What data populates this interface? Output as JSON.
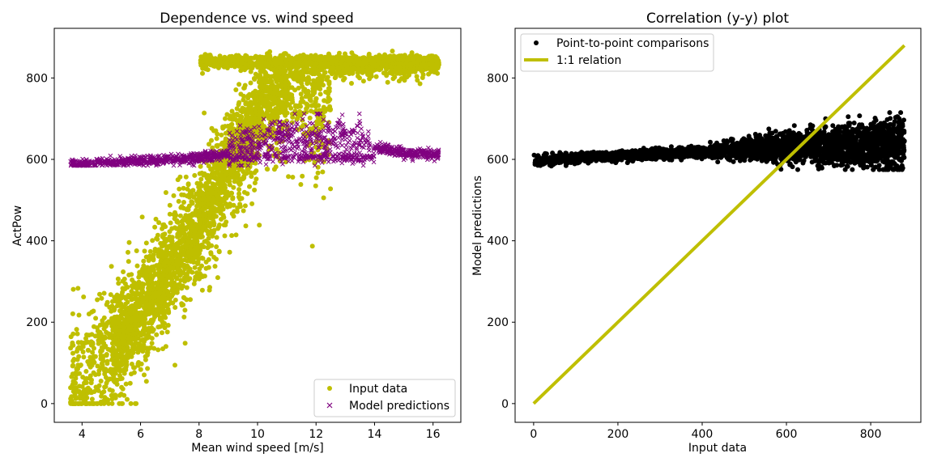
{
  "chart_data": [
    {
      "type": "scatter",
      "title": "Dependence vs. wind speed",
      "xlabel": "Mean wind speed [m/s]",
      "ylabel": "ActPow",
      "xlim": [
        3.05,
        16.95
      ],
      "ylim": [
        -46,
        922
      ],
      "xticks": [
        4,
        6,
        8,
        10,
        12,
        14,
        16
      ],
      "yticks": [
        0,
        200,
        400,
        600,
        800
      ],
      "grid": false,
      "legend_position": "lower-right",
      "series": [
        {
          "name": "Input data",
          "marker": "circle",
          "color": "#bfbf00",
          "description": "Power curve: rises from ~0-100 at 3.6-5 m/s to ~850 at 10-16 m/s",
          "x_range": [
            3.6,
            16.2
          ],
          "y_range": [
            0,
            875
          ],
          "curve_x": [
            3.6,
            4.0,
            5.0,
            6.0,
            7.0,
            8.0,
            9.0,
            10.0,
            11.0,
            12.0,
            13.0,
            14.0,
            15.0,
            16.2
          ],
          "curve_y": [
            40,
            70,
            130,
            220,
            330,
            450,
            580,
            700,
            790,
            840,
            850,
            850,
            850,
            850
          ]
        },
        {
          "name": "Model predictions",
          "marker": "x",
          "color": "#800080",
          "description": "Near-flat predictions around 585-710",
          "x_range": [
            3.6,
            16.2
          ],
          "y_range": [
            585,
            712
          ],
          "curve_x": [
            3.6,
            6.0,
            8.0,
            9.0,
            10.0,
            11.0,
            12.0,
            13.0,
            14.0,
            15.0,
            16.2
          ],
          "curve_y": [
            587,
            596,
            603,
            615,
            645,
            660,
            655,
            650,
            630,
            615,
            612
          ]
        }
      ]
    },
    {
      "type": "scatter",
      "title": "Correlation (y-y) plot",
      "xlabel": "Input data",
      "ylabel": "Model predictions",
      "xlim": [
        -44,
        919
      ],
      "ylim": [
        -46,
        922
      ],
      "xticks": [
        0,
        200,
        400,
        600,
        800
      ],
      "yticks": [
        0,
        200,
        400,
        600,
        800
      ],
      "grid": false,
      "legend_position": "upper-left",
      "series": [
        {
          "name": "Point-to-point comparisons",
          "marker": "circle",
          "color": "#000000",
          "description": "Predictions vs inputs: flat band ~590-610 for inputs 0-400, widening to 575-715 for inputs 400-880",
          "x_range": [
            0,
            880
          ],
          "y_range": [
            575,
            715
          ]
        },
        {
          "name": "1:1 relation",
          "marker": "line",
          "color": "#bfbf00",
          "x": [
            0,
            880
          ],
          "y": [
            0,
            880
          ]
        }
      ]
    }
  ]
}
